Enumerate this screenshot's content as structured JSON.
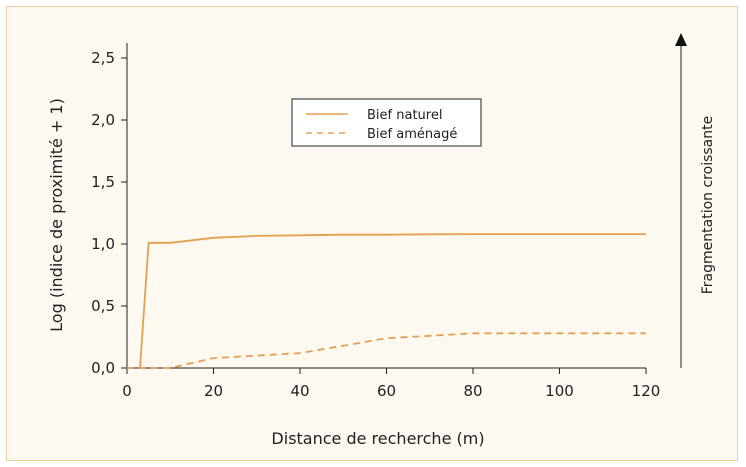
{
  "chart_data": {
    "type": "line",
    "title": "",
    "xlabel": "Distance de recherche (m)",
    "ylabel": "Log (indice de proximité + 1)",
    "xlim": [
      0,
      120
    ],
    "ylim": [
      0,
      2.7
    ],
    "xticks": [
      0,
      20,
      40,
      60,
      80,
      100,
      120
    ],
    "xtick_labels": [
      "0",
      "20",
      "40",
      "60",
      "80",
      "100",
      "120"
    ],
    "yticks": [
      0,
      0.5,
      1.0,
      1.5,
      2.0,
      2.5
    ],
    "ytick_labels": [
      "0,0",
      "0,5",
      "1,0",
      "1,5",
      "2,0",
      "2,5"
    ],
    "grid": false,
    "legend_position": "top-center",
    "side_annotation": "Fragmentation croissante",
    "series": [
      {
        "name": "Bief naturel",
        "style": "solid",
        "color": "#e3a04f",
        "x": [
          3,
          5,
          10,
          20,
          30,
          40,
          50,
          60,
          70,
          80,
          90,
          100,
          110,
          120
        ],
        "y": [
          0.0,
          1.01,
          1.01,
          1.05,
          1.065,
          1.07,
          1.075,
          1.075,
          1.078,
          1.08,
          1.08,
          1.08,
          1.08,
          1.08
        ]
      },
      {
        "name": "Bief aménagé",
        "style": "dashed",
        "color": "#e3a04f",
        "x": [
          0,
          10,
          20,
          30,
          40,
          50,
          60,
          70,
          80,
          90,
          100,
          110,
          120
        ],
        "y": [
          0.0,
          0.0,
          0.08,
          0.1,
          0.12,
          0.18,
          0.24,
          0.26,
          0.28,
          0.28,
          0.28,
          0.28,
          0.28
        ]
      }
    ]
  }
}
